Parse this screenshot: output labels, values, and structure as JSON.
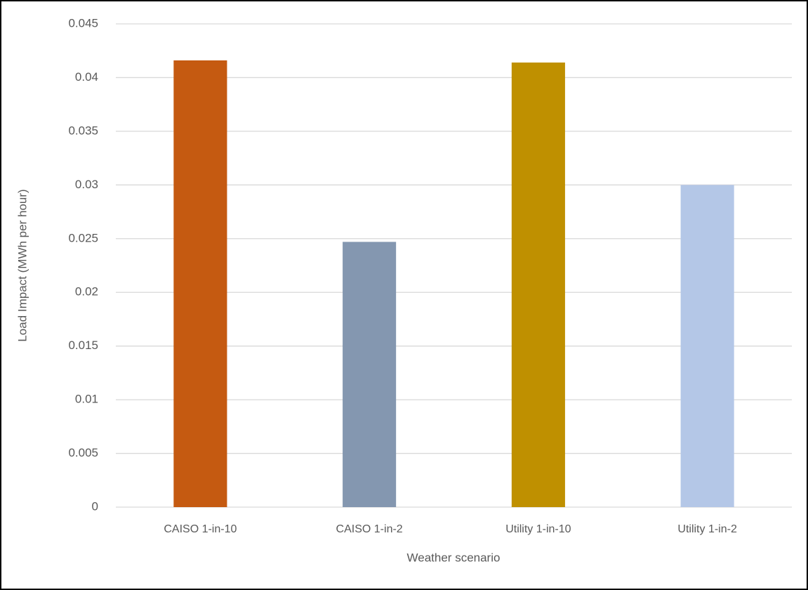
{
  "chart_data": {
    "type": "bar",
    "categories": [
      "CAISO 1-in-10",
      "CAISO 1-in-2",
      "Utility 1-in-10",
      "Utility 1-in-2"
    ],
    "values": [
      0.0416,
      0.0247,
      0.0414,
      0.03
    ],
    "colors": [
      "#c55a11",
      "#8497b0",
      "#bf9000",
      "#b4c7e7"
    ],
    "x_label": "Weather scenario",
    "y_label": "Load Impact (MWh per hour)",
    "ylim": [
      0,
      0.045
    ],
    "yticks": [
      0,
      0.005,
      0.01,
      0.015,
      0.02,
      0.025,
      0.03,
      0.035,
      0.04,
      0.045
    ],
    "grid": true
  }
}
